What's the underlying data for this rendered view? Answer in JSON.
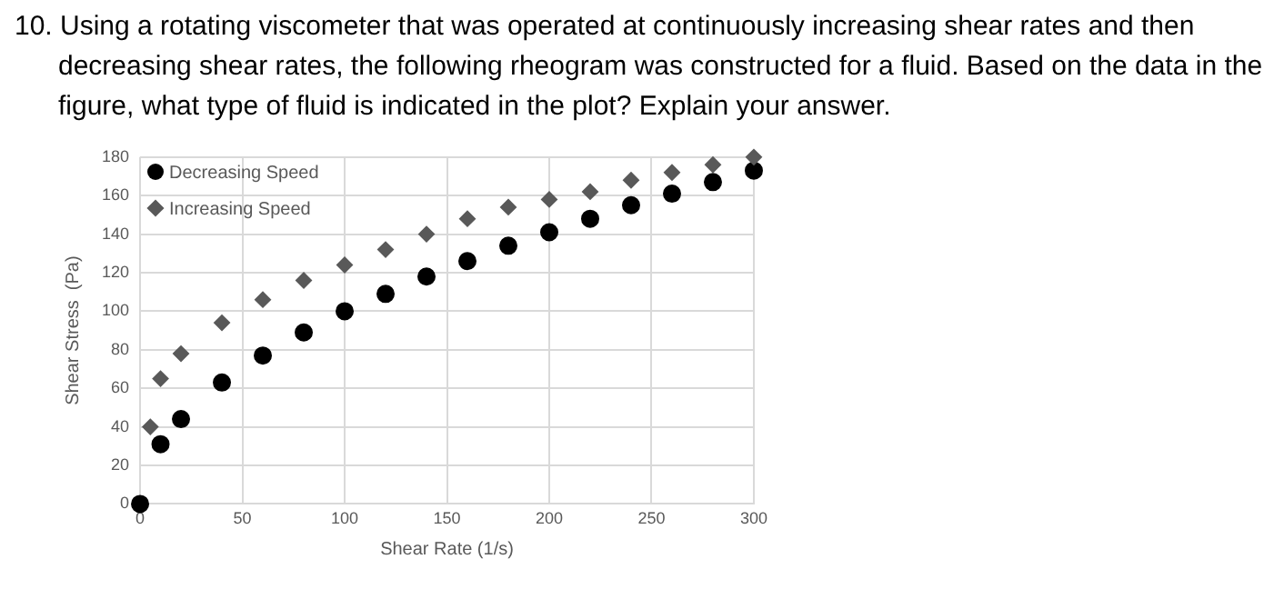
{
  "chart_data": {
    "type": "scatter",
    "title": "10. Using a rotating viscometer that was operated at continuously increasing shear rates and then decreasing shear rates, the following rheogram was constructed for a fluid. Based on the data in the figure, what type of fluid is indicated in the plot? Explain your answer.",
    "xlabel": "Shear Rate (1/s)",
    "ylabel": "Shear Stress  (Pa)",
    "series": [
      {
        "name": "Decreasing Speed",
        "color": "#000000",
        "marker": "circle",
        "x": [
          0,
          10,
          20,
          40,
          60,
          80,
          100,
          120,
          140,
          160,
          180,
          200,
          220,
          240,
          260,
          280,
          300
        ],
        "values": [
          0,
          31,
          44,
          63,
          77,
          89,
          100,
          109,
          118,
          126,
          134,
          141,
          148,
          155,
          161,
          167,
          173
        ]
      },
      {
        "name": "Increasing Speed",
        "color": "#595959",
        "marker": "diamond",
        "x": [
          5,
          10,
          20,
          40,
          60,
          80,
          100,
          120,
          140,
          160,
          180,
          200,
          220,
          240,
          260,
          280,
          300
        ],
        "values": [
          40,
          65,
          78,
          94,
          106,
          116,
          124,
          132,
          140,
          148,
          154,
          158,
          162,
          168,
          172,
          176,
          180
        ]
      }
    ],
    "xlim": [
      0,
      300
    ],
    "xticks": [
      0,
      50,
      100,
      150,
      200,
      250,
      300
    ],
    "ylim": [
      0,
      180
    ],
    "yticks": [
      0,
      20,
      40,
      60,
      80,
      100,
      120,
      140,
      160,
      180
    ],
    "grid": true,
    "legend": "top left"
  }
}
